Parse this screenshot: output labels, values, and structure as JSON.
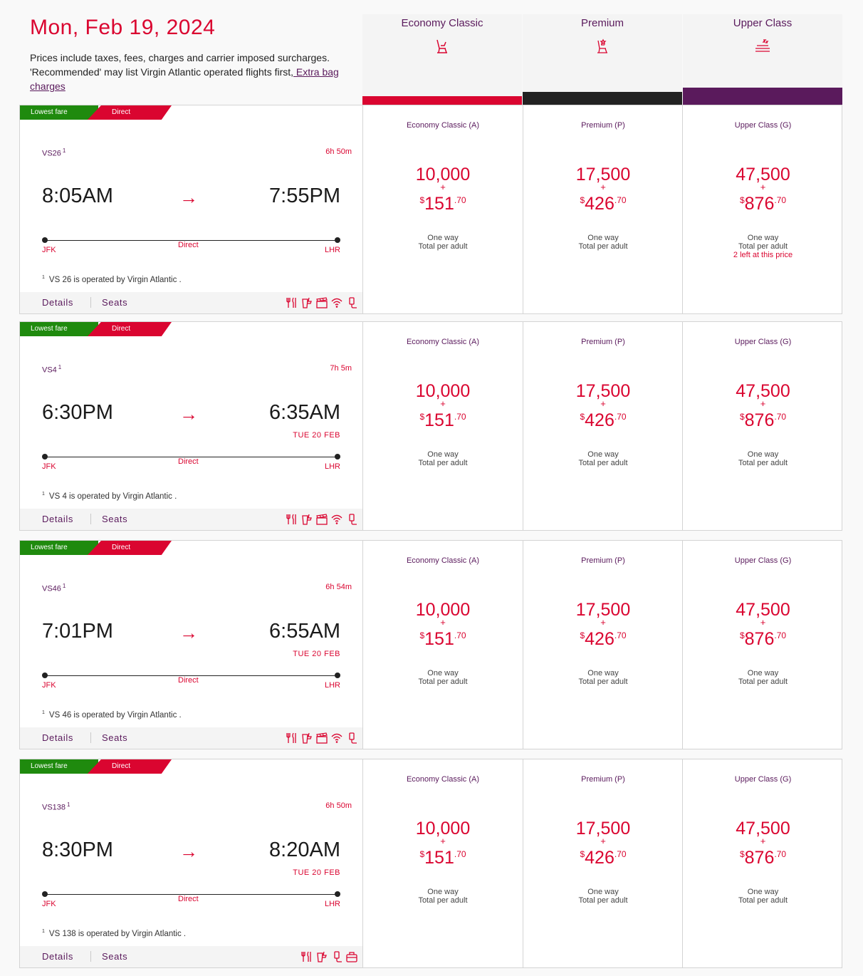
{
  "header": {
    "date": "Mon, Feb 19, 2024",
    "note": "Prices include taxes, fees, charges and carrier imposed surcharges. 'Recommended' may list Virgin Atlantic operated flights first,",
    "extra_bag_link": " Extra bag charges"
  },
  "cabins": [
    {
      "name": "Economy Classic",
      "color": "#da0530"
    },
    {
      "name": "Premium",
      "color": "#222222"
    },
    {
      "name": "Upper Class",
      "color": "#5a1a5c"
    }
  ],
  "labels": {
    "lowest_fare": "Lowest fare",
    "direct_badge": "Direct",
    "direct_mid": "Direct",
    "details": "Details",
    "seats": "Seats",
    "one_way": "One way",
    "total_per_adult": "Total per adult",
    "plus": "+",
    "currency": "$",
    "arrow": "→",
    "footnote_mark": "1"
  },
  "flights": [
    {
      "number": "VS26",
      "duration": "6h 50m",
      "depart": "8:05AM",
      "arrive": "7:55PM",
      "arrive_note": "",
      "origin": "JFK",
      "destination": "LHR",
      "operated": "VS 26 is operated by Virgin Atlantic .",
      "amenities": [
        "meal-icon",
        "drinks-icon",
        "entertainment-icon",
        "wifi-icon",
        "power-icon"
      ],
      "fares": [
        {
          "label": "Economy Classic (A)",
          "points": "10,000",
          "cash_whole": "151",
          "cash_cents": ".70",
          "availability": ""
        },
        {
          "label": "Premium (P)",
          "points": "17,500",
          "cash_whole": "426",
          "cash_cents": ".70",
          "availability": ""
        },
        {
          "label": "Upper Class (G)",
          "points": "47,500",
          "cash_whole": "876",
          "cash_cents": ".70",
          "availability": "2 left at this price"
        }
      ]
    },
    {
      "number": "VS4",
      "duration": "7h 5m",
      "depart": "6:30PM",
      "arrive": "6:35AM",
      "arrive_note": "TUE 20 FEB",
      "origin": "JFK",
      "destination": "LHR",
      "operated": "VS 4 is operated by Virgin Atlantic .",
      "amenities": [
        "meal-icon",
        "drinks-icon",
        "entertainment-icon",
        "wifi-icon",
        "power-icon"
      ],
      "fares": [
        {
          "label": "Economy Classic (A)",
          "points": "10,000",
          "cash_whole": "151",
          "cash_cents": ".70",
          "availability": ""
        },
        {
          "label": "Premium (P)",
          "points": "17,500",
          "cash_whole": "426",
          "cash_cents": ".70",
          "availability": ""
        },
        {
          "label": "Upper Class (G)",
          "points": "47,500",
          "cash_whole": "876",
          "cash_cents": ".70",
          "availability": ""
        }
      ]
    },
    {
      "number": "VS46",
      "duration": "6h 54m",
      "depart": "7:01PM",
      "arrive": "6:55AM",
      "arrive_note": "TUE 20 FEB",
      "origin": "JFK",
      "destination": "LHR",
      "operated": "VS 46 is operated by Virgin Atlantic .",
      "amenities": [
        "meal-icon",
        "drinks-icon",
        "entertainment-icon",
        "wifi-icon",
        "power-icon"
      ],
      "fares": [
        {
          "label": "Economy Classic (A)",
          "points": "10,000",
          "cash_whole": "151",
          "cash_cents": ".70",
          "availability": ""
        },
        {
          "label": "Premium (P)",
          "points": "17,500",
          "cash_whole": "426",
          "cash_cents": ".70",
          "availability": ""
        },
        {
          "label": "Upper Class (G)",
          "points": "47,500",
          "cash_whole": "876",
          "cash_cents": ".70",
          "availability": ""
        }
      ]
    },
    {
      "number": "VS138",
      "duration": "6h 50m",
      "depart": "8:30PM",
      "arrive": "8:20AM",
      "arrive_note": "TUE 20 FEB",
      "origin": "JFK",
      "destination": "LHR",
      "operated": "VS 138 is operated by Virgin Atlantic .",
      "amenities": [
        "meal-icon",
        "drinks-icon",
        "power-icon",
        "bag-icon"
      ],
      "fares": [
        {
          "label": "Economy Classic (A)",
          "points": "10,000",
          "cash_whole": "151",
          "cash_cents": ".70",
          "availability": ""
        },
        {
          "label": "Premium (P)",
          "points": "17,500",
          "cash_whole": "426",
          "cash_cents": ".70",
          "availability": ""
        },
        {
          "label": "Upper Class (G)",
          "points": "47,500",
          "cash_whole": "876",
          "cash_cents": ".70",
          "availability": ""
        }
      ]
    }
  ]
}
